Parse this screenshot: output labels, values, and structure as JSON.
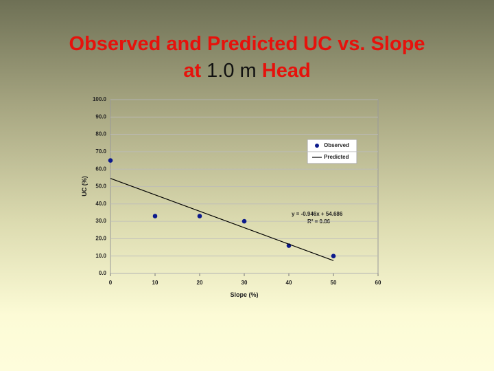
{
  "slide_title": {
    "line1": "Observed and Predicted UC vs. Slope",
    "line2": [
      "at",
      "1.0 m",
      "Head"
    ]
  },
  "chart_data": {
    "type": "scatter",
    "x_label": "Slope (%)",
    "y_label": "UC (%)",
    "xlim": [
      0,
      60
    ],
    "ylim": [
      0,
      100
    ],
    "xticks": [
      0,
      10,
      20,
      30,
      40,
      50,
      60
    ],
    "yticks": [
      {
        "value": 0,
        "label": "0.0"
      },
      {
        "value": 10,
        "label": "10.0"
      },
      {
        "value": 20,
        "label": "20.0"
      },
      {
        "value": 30,
        "label": "30.0"
      },
      {
        "value": 40,
        "label": "40.0"
      },
      {
        "value": 50,
        "label": "50.0"
      },
      {
        "value": 60,
        "label": "60.0"
      },
      {
        "value": 70,
        "label": "70.0"
      },
      {
        "value": 80,
        "label": "80.0"
      },
      {
        "value": 90,
        "label": "90.0"
      },
      {
        "value": 100,
        "label": "100.0"
      }
    ],
    "grid": true,
    "legend": "upper right",
    "series": [
      {
        "name": "Observed",
        "type": "scatter",
        "color": "#0c1a8c",
        "x": [
          0,
          10,
          20,
          30,
          40,
          50
        ],
        "values": [
          65,
          33,
          33,
          30,
          16,
          10
        ]
      },
      {
        "name": "Predicted",
        "type": "line",
        "color": "#000000",
        "x": [
          0,
          50
        ],
        "values": [
          54.686,
          7.386
        ]
      }
    ],
    "annotations": [
      "y = -0.946x + 54.686",
      "R² = 0.86"
    ]
  }
}
